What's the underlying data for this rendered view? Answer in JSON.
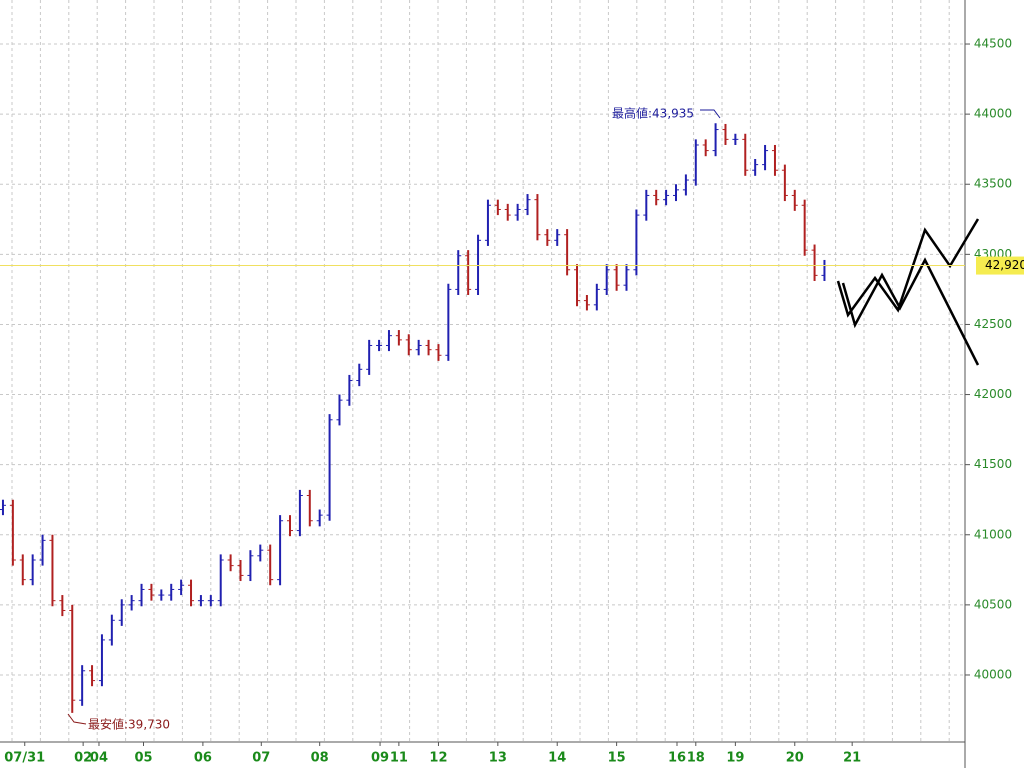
{
  "chart_data": {
    "type": "ohlc",
    "x": [
      0,
      1,
      2,
      3,
      4,
      5,
      6,
      7,
      8,
      9,
      10,
      11,
      12,
      13,
      14,
      15,
      16,
      17,
      18,
      19,
      20,
      21,
      22,
      23,
      24,
      25,
      26,
      27,
      28,
      29,
      30,
      31,
      32,
      33,
      34,
      35,
      36,
      37,
      38,
      39,
      40,
      41,
      42,
      43,
      44,
      45,
      46,
      47,
      48,
      49,
      50,
      51,
      52,
      53,
      54,
      55,
      56,
      57,
      58,
      59,
      60,
      61,
      62,
      63,
      64,
      65,
      66,
      67,
      68,
      69,
      70,
      71,
      72,
      73,
      74,
      75,
      76,
      77,
      78,
      79,
      80,
      81,
      82,
      83
    ],
    "open": [
      41180,
      41210,
      40820,
      40680,
      40820,
      40960,
      40530,
      40460,
      39820,
      40030,
      39960,
      40250,
      40390,
      40500,
      40530,
      40610,
      40570,
      40570,
      40610,
      40640,
      40530,
      40530,
      40530,
      40820,
      40780,
      40710,
      40850,
      40890,
      40680,
      41100,
      41030,
      41280,
      41100,
      41140,
      41820,
      41960,
      42100,
      42180,
      42350,
      42350,
      42420,
      42390,
      42320,
      42350,
      42320,
      42280,
      42750,
      42990,
      42750,
      43100,
      43350,
      43320,
      43280,
      43320,
      43390,
      43140,
      43100,
      43140,
      42890,
      42670,
      42640,
      42750,
      42890,
      42780,
      42890,
      43280,
      43420,
      43390,
      43420,
      43460,
      43530,
      43780,
      43740,
      43890,
      43820,
      43820,
      43600,
      43640,
      43740,
      43600,
      43420,
      43350,
      43030,
      42850
    ],
    "high": [
      41250,
      41250,
      40860,
      40860,
      41000,
      41000,
      40570,
      40500,
      40070,
      40070,
      40290,
      40430,
      40540,
      40570,
      40650,
      40650,
      40610,
      40650,
      40680,
      40680,
      40570,
      40570,
      40860,
      40860,
      40820,
      40890,
      40930,
      40930,
      41140,
      41140,
      41320,
      41320,
      41180,
      41860,
      42000,
      42140,
      42220,
      42390,
      42390,
      42460,
      42460,
      42430,
      42390,
      42390,
      42360,
      42790,
      43030,
      43030,
      43140,
      43390,
      43390,
      43360,
      43360,
      43430,
      43430,
      43180,
      43180,
      43180,
      42930,
      42710,
      42790,
      42930,
      42930,
      42930,
      43320,
      43460,
      43460,
      43460,
      43500,
      43570,
      43820,
      43820,
      43935,
      43930,
      43860,
      43860,
      43680,
      43780,
      43780,
      43640,
      43460,
      43390,
      43070,
      42960
    ],
    "low": [
      41140,
      40780,
      40640,
      40640,
      40780,
      40490,
      40420,
      39730,
      39780,
      39920,
      39920,
      40210,
      40350,
      40460,
      40490,
      40530,
      40530,
      40530,
      40570,
      40490,
      40490,
      40490,
      40490,
      40740,
      40670,
      40670,
      40810,
      40640,
      40640,
      40990,
      40990,
      41060,
      41060,
      41100,
      41780,
      41920,
      42060,
      42140,
      42310,
      42310,
      42350,
      42280,
      42280,
      42280,
      42240,
      42240,
      42710,
      42710,
      42710,
      43060,
      43280,
      43240,
      43240,
      43280,
      43100,
      43060,
      43060,
      42850,
      42630,
      42600,
      42600,
      42710,
      42740,
      42740,
      42850,
      43240,
      43350,
      43350,
      43380,
      43420,
      43490,
      43700,
      43700,
      43780,
      43780,
      43560,
      43560,
      43600,
      43560,
      43380,
      43310,
      42990,
      42810,
      42810
    ],
    "close": [
      41210,
      40820,
      40680,
      40820,
      40960,
      40530,
      40460,
      39820,
      40030,
      39960,
      40250,
      40390,
      40500,
      40530,
      40610,
      40570,
      40570,
      40610,
      40640,
      40530,
      40530,
      40530,
      40820,
      40780,
      40710,
      40850,
      40890,
      40680,
      41100,
      41030,
      41280,
      41100,
      41140,
      41820,
      41960,
      42100,
      42180,
      42350,
      42350,
      42420,
      42390,
      42320,
      42350,
      42320,
      42280,
      42750,
      42990,
      42750,
      43100,
      43350,
      43320,
      43280,
      43320,
      43390,
      43140,
      43100,
      43140,
      42890,
      42670,
      42640,
      42750,
      42890,
      42780,
      42890,
      43280,
      43420,
      43390,
      43420,
      43460,
      43530,
      43780,
      43740,
      43890,
      43820,
      43820,
      43600,
      43640,
      43740,
      43600,
      43420,
      43350,
      43030,
      42850,
      42920
    ],
    "up_color": "#2020b0",
    "down_color": "#b02020",
    "xlim": [
      -0.3,
      97.2
    ],
    "xticks": [
      {
        "value": 2.2,
        "label": "07/31"
      },
      {
        "value": 8.1,
        "label": "02"
      },
      {
        "value": 9.7,
        "label": "04"
      },
      {
        "value": 14.2,
        "label": "05"
      },
      {
        "value": 20.2,
        "label": "06"
      },
      {
        "value": 26.1,
        "label": "07"
      },
      {
        "value": 32.0,
        "label": "08"
      },
      {
        "value": 38.1,
        "label": "09"
      },
      {
        "value": 40.0,
        "label": "11"
      },
      {
        "value": 44.0,
        "label": "12"
      },
      {
        "value": 50.0,
        "label": "13"
      },
      {
        "value": 56.0,
        "label": "14"
      },
      {
        "value": 62.0,
        "label": "15"
      },
      {
        "value": 68.1,
        "label": "16"
      },
      {
        "value": 70.0,
        "label": "18"
      },
      {
        "value": 74.0,
        "label": "19"
      },
      {
        "value": 80.0,
        "label": "20"
      },
      {
        "value": 85.8,
        "label": "21"
      }
    ],
    "ylim": [
      39522,
      44814
    ],
    "yticks": [
      40000,
      40500,
      41000,
      41500,
      42000,
      42500,
      43000,
      43500,
      44000,
      44500
    ],
    "grid": true,
    "current_price": {
      "value": 42920,
      "label": "42,920"
    },
    "annotations": [
      {
        "text": "最高値:43,935"
      },
      {
        "text": "最安値:39,730"
      }
    ]
  }
}
